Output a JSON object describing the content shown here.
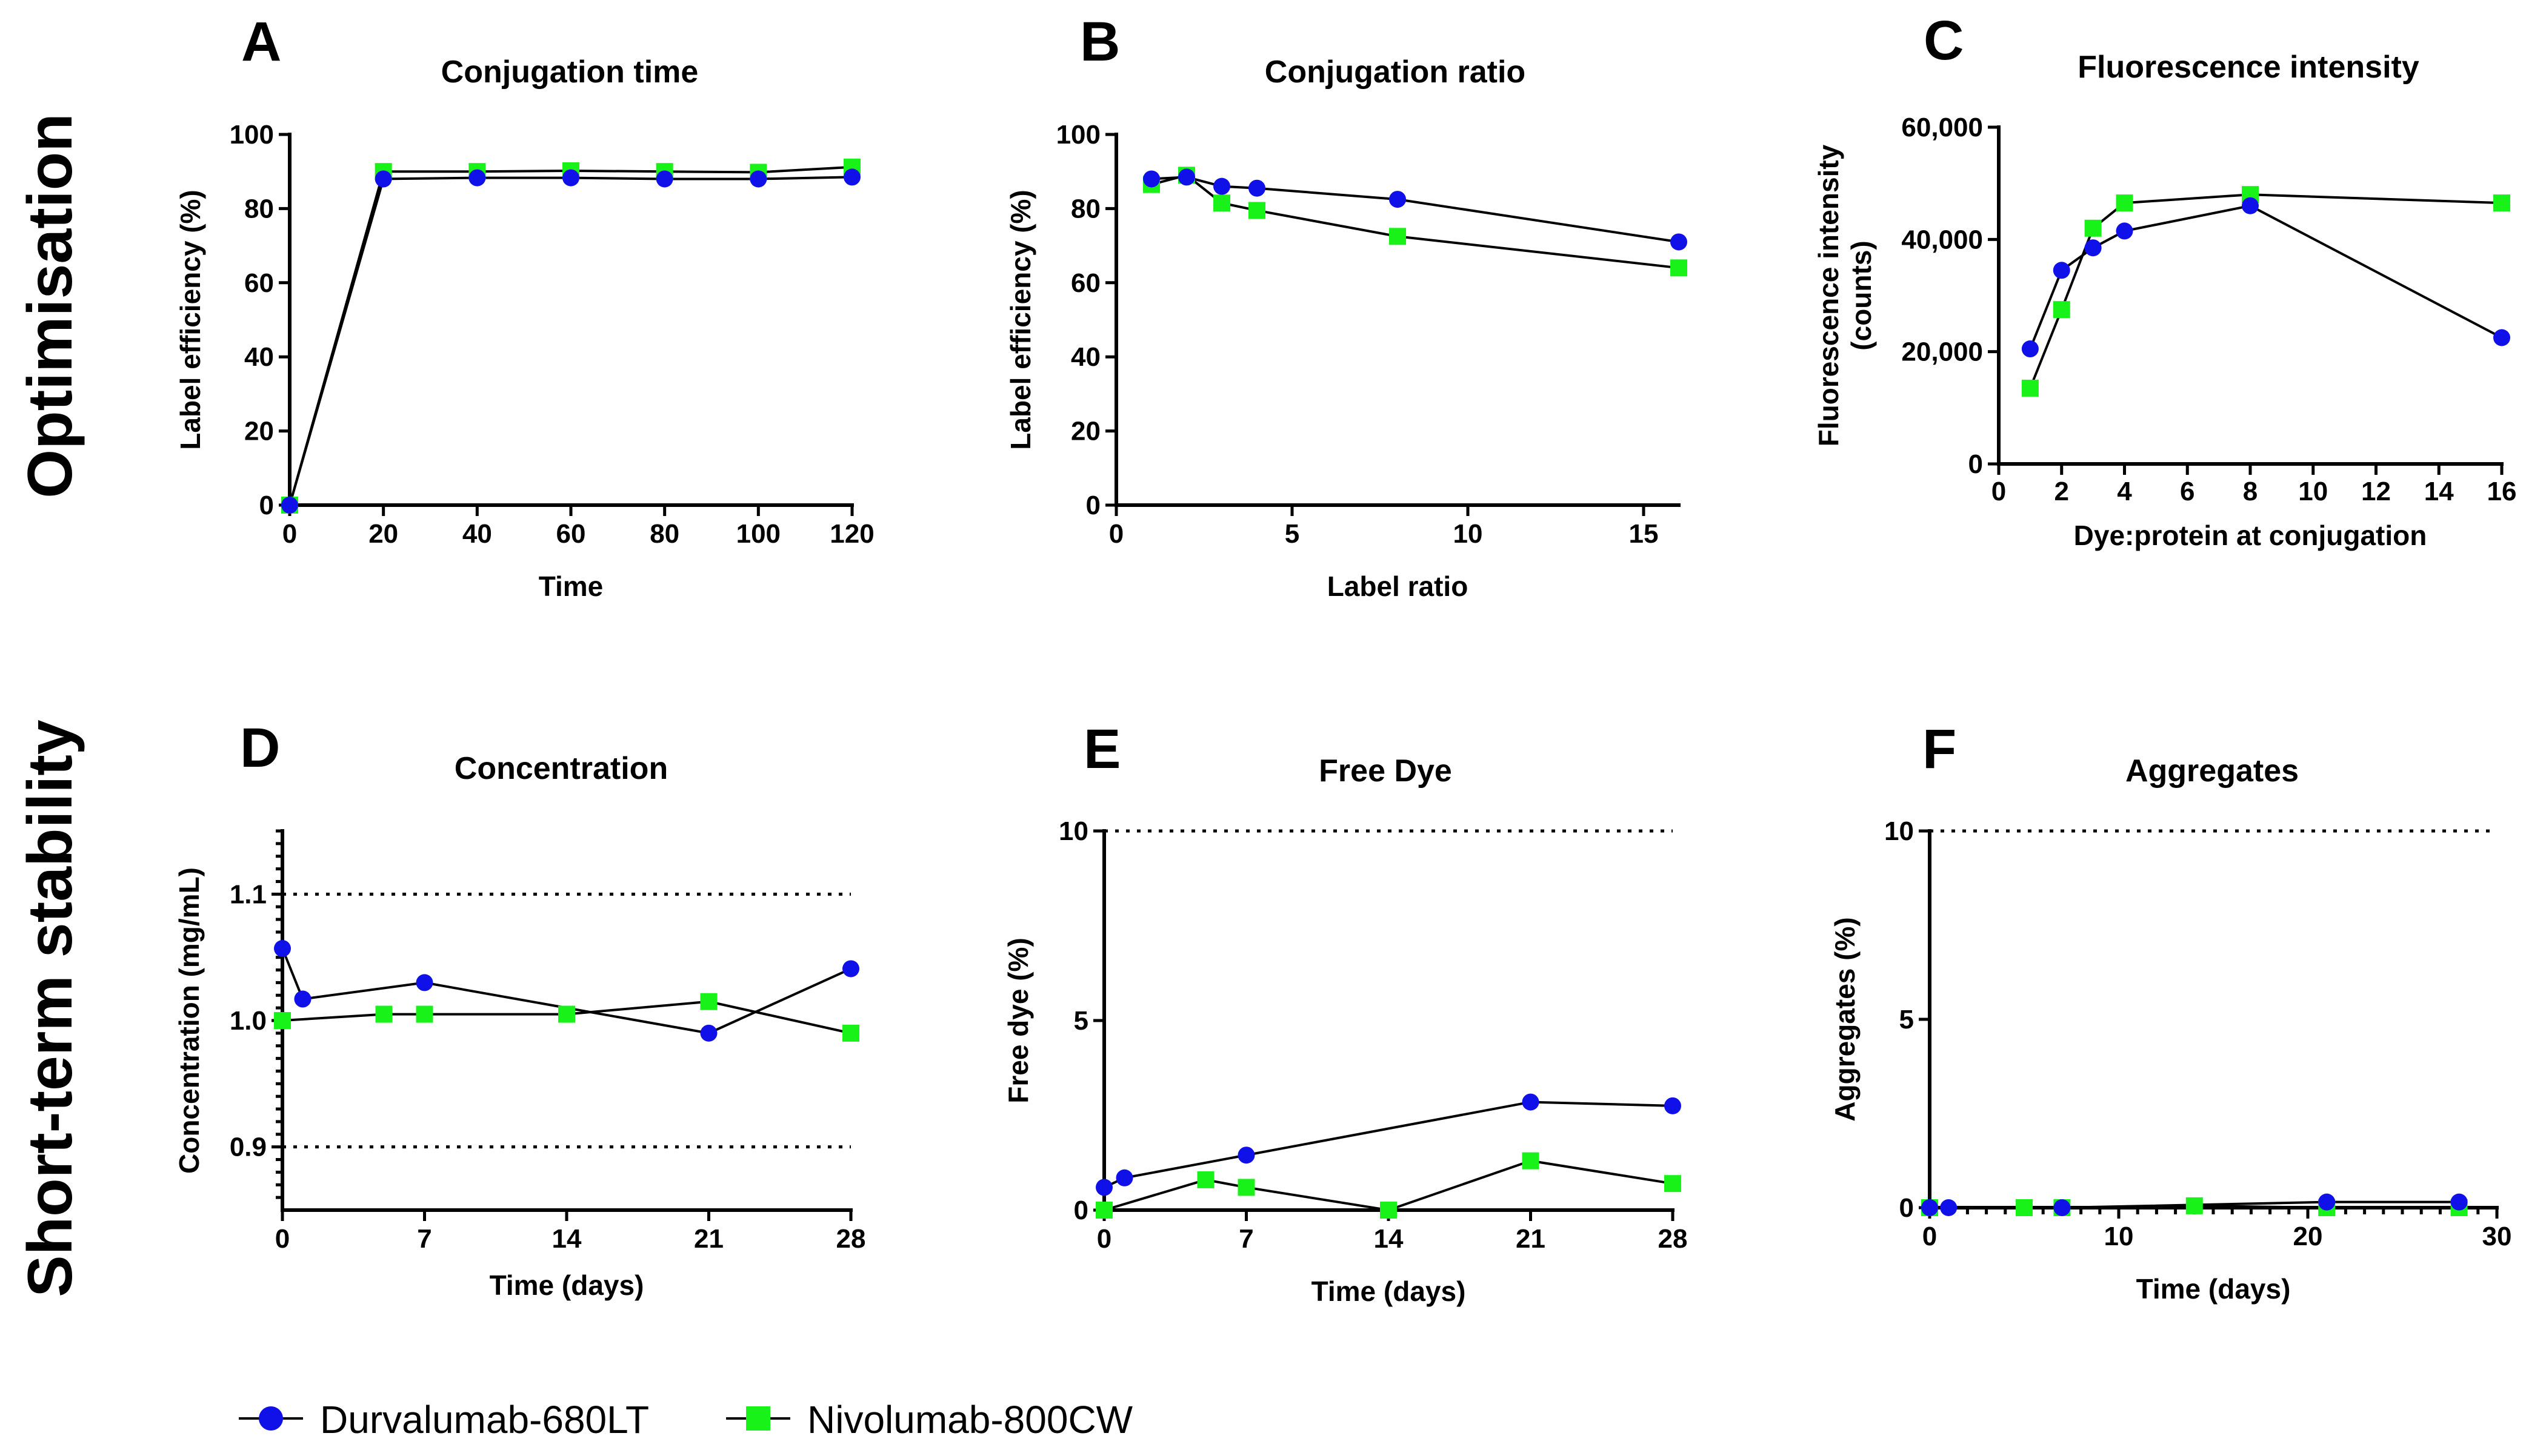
{
  "figure": {
    "row_labels": [
      "Optimisation",
      "Short-term stability"
    ],
    "legend": [
      {
        "name": "Durvalumab-680LT",
        "marker": "circle",
        "color": "#1010e8"
      },
      {
        "name": "Nivolumab-800CW",
        "marker": "square",
        "color": "#19f219"
      }
    ]
  },
  "chart_data": [
    {
      "letter": "A",
      "type": "line",
      "title": "Conjugation time",
      "xlabel": "Time",
      "ylabel": [
        "Label efficiency (%)"
      ],
      "xlim": [
        0,
        120
      ],
      "ylim": [
        0,
        100
      ],
      "xticks": [
        0,
        20,
        40,
        60,
        80,
        100,
        120
      ],
      "xtick_labels": [
        "0",
        "20",
        "40",
        "60",
        "80",
        "100",
        "120"
      ],
      "yticks": [
        0,
        20,
        40,
        60,
        80,
        100
      ],
      "ytick_labels": [
        "0",
        "20",
        "40",
        "60",
        "80",
        "100"
      ],
      "minor_x": [],
      "minor_y": [],
      "ref_lines": [],
      "series": [
        {
          "name": "Durvalumab-680LT",
          "x": [
            0,
            20,
            40,
            60,
            80,
            100,
            120
          ],
          "y": [
            0,
            88,
            88.3,
            88.3,
            88,
            88,
            88.5
          ]
        },
        {
          "name": "Nivolumab-800CW",
          "x": [
            0,
            20,
            40,
            60,
            80,
            100,
            120
          ],
          "y": [
            0,
            90,
            90,
            90.2,
            90,
            89.8,
            91.2
          ]
        }
      ]
    },
    {
      "letter": "B",
      "type": "line",
      "title": "Conjugation ratio",
      "xlabel": "Label ratio",
      "ylabel": [
        "Label efficiency (%)"
      ],
      "xlim": [
        0,
        16
      ],
      "ylim": [
        0,
        100
      ],
      "xticks": [
        0,
        5,
        10,
        15
      ],
      "xtick_labels": [
        "0",
        "5",
        "10",
        "15"
      ],
      "yticks": [
        0,
        20,
        40,
        60,
        80,
        100
      ],
      "ytick_labels": [
        "0",
        "20",
        "40",
        "60",
        "80",
        "100"
      ],
      "minor_x": [],
      "minor_y": [],
      "ref_lines": [],
      "series": [
        {
          "name": "Durvalumab-680LT",
          "x": [
            1,
            2,
            3,
            4,
            8,
            16
          ],
          "y": [
            88,
            88.5,
            86,
            85.5,
            82.5,
            71
          ]
        },
        {
          "name": "Nivolumab-800CW",
          "x": [
            1,
            2,
            3,
            4,
            8,
            16
          ],
          "y": [
            86.5,
            89,
            81.5,
            79.5,
            72.5,
            64
          ]
        }
      ]
    },
    {
      "letter": "C",
      "type": "line",
      "title": "Fluorescence intensity",
      "xlabel": "Dye:protein at conjugation",
      "ylabel": [
        "Fluorescence intensity",
        "(counts)"
      ],
      "xlim": [
        0,
        16
      ],
      "ylim": [
        0,
        60000
      ],
      "xticks": [
        0,
        2,
        4,
        6,
        8,
        10,
        12,
        14,
        16
      ],
      "xtick_labels": [
        "0",
        "2",
        "4",
        "6",
        "8",
        "10",
        "12",
        "14",
        "16"
      ],
      "yticks": [
        0,
        20000,
        40000,
        60000
      ],
      "ytick_labels": [
        "0",
        "20,000",
        "40,000",
        "60,000"
      ],
      "minor_x": [],
      "minor_y": [],
      "ref_lines": [],
      "series": [
        {
          "name": "Durvalumab-680LT",
          "x": [
            1,
            2,
            3,
            4,
            8,
            16
          ],
          "y": [
            20500,
            34500,
            38500,
            41500,
            46000,
            22500
          ]
        },
        {
          "name": "Nivolumab-800CW",
          "x": [
            1,
            2,
            3,
            4,
            8,
            16
          ],
          "y": [
            13500,
            27500,
            42000,
            46500,
            48000,
            46500
          ]
        }
      ]
    },
    {
      "letter": "D",
      "type": "line",
      "title": "Concentration",
      "xlabel": "Time (days)",
      "ylabel": [
        "Concentration (mg/mL)"
      ],
      "xlim": [
        0,
        28
      ],
      "ylim": [
        0.85,
        1.15
      ],
      "xticks": [
        0,
        7,
        14,
        21,
        28
      ],
      "xtick_labels": [
        "0",
        "7",
        "14",
        "21",
        "28"
      ],
      "yticks": [
        0.9,
        1.0,
        1.1
      ],
      "ytick_labels": [
        "0.9",
        "1.0",
        "1.1"
      ],
      "minor_x": [],
      "minor_y": [
        0.86,
        0.87,
        0.88,
        0.89,
        0.91,
        0.92,
        0.93,
        0.94,
        0.95,
        0.96,
        0.97,
        0.98,
        0.99,
        1.01,
        1.02,
        1.03,
        1.04,
        1.05,
        1.06,
        1.07,
        1.08,
        1.09,
        1.11,
        1.12,
        1.13,
        1.14,
        1.15
      ],
      "ref_lines": [
        0.9,
        1.1
      ],
      "series": [
        {
          "name": "Durvalumab-680LT",
          "x": [
            0,
            1,
            7,
            21,
            28
          ],
          "y": [
            1.057,
            1.017,
            1.03,
            0.99,
            1.041
          ]
        },
        {
          "name": "Nivolumab-800CW",
          "x": [
            0,
            5,
            7,
            14,
            21,
            28
          ],
          "y": [
            1.0,
            1.005,
            1.005,
            1.005,
            1.015,
            0.99
          ]
        }
      ]
    },
    {
      "letter": "E",
      "type": "line",
      "title": "Free Dye",
      "xlabel": "Time (days)",
      "ylabel": [
        "Free dye (%)"
      ],
      "xlim": [
        0,
        28
      ],
      "ylim": [
        0,
        10
      ],
      "xticks": [
        0,
        7,
        14,
        21,
        28
      ],
      "xtick_labels": [
        "0",
        "7",
        "14",
        "21",
        "28"
      ],
      "yticks": [
        0,
        5,
        10
      ],
      "ytick_labels": [
        "0",
        "5",
        "10"
      ],
      "minor_x": [],
      "minor_y": [],
      "ref_lines": [
        10
      ],
      "series": [
        {
          "name": "Durvalumab-680LT",
          "x": [
            0,
            1,
            7,
            21,
            28
          ],
          "y": [
            0.6,
            0.85,
            1.45,
            2.85,
            2.75
          ]
        },
        {
          "name": "Nivolumab-800CW",
          "x": [
            0,
            5,
            7,
            14,
            21,
            28
          ],
          "y": [
            0.0,
            0.8,
            0.6,
            0.0,
            1.3,
            0.7
          ]
        }
      ]
    },
    {
      "letter": "F",
      "type": "line",
      "title": "Aggregates",
      "xlabel": "Time (days)",
      "ylabel": [
        "Aggregates (%)"
      ],
      "xlim": [
        0,
        30
      ],
      "ylim": [
        0,
        10
      ],
      "xticks": [
        0,
        10,
        20,
        30
      ],
      "xtick_labels": [
        "0",
        "10",
        "20",
        "30"
      ],
      "yticks": [
        0,
        5,
        10
      ],
      "ytick_labels": [
        "0",
        "5",
        "10"
      ],
      "minor_x": [
        1,
        2,
        3,
        4,
        5,
        6,
        7,
        8,
        9,
        11,
        12,
        13,
        14,
        15,
        16,
        17,
        18,
        19,
        21,
        22,
        23,
        24,
        25,
        26,
        27,
        28,
        29
      ],
      "minor_y": [],
      "ref_lines": [
        10
      ],
      "series": [
        {
          "name": "Durvalumab-680LT",
          "x": [
            0,
            1,
            7,
            21,
            28
          ],
          "y": [
            0.0,
            0.0,
            0.0,
            0.15,
            0.15
          ]
        },
        {
          "name": "Nivolumab-800CW",
          "x": [
            0,
            5,
            7,
            14,
            21,
            28
          ],
          "y": [
            0.0,
            0.0,
            0.0,
            0.05,
            0.0,
            0.0
          ]
        }
      ]
    }
  ]
}
